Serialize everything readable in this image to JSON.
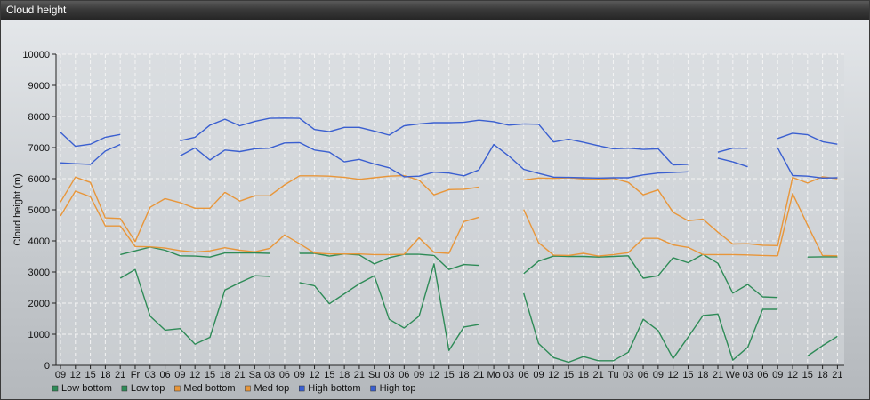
{
  "window": {
    "title": "Cloud height"
  },
  "chart_data": {
    "type": "line",
    "ylabel": "Cloud height (m)",
    "xlabel": "",
    "ylim": [
      0,
      10000
    ],
    "yticks": [
      0,
      1000,
      2000,
      3000,
      4000,
      5000,
      6000,
      7000,
      8000,
      9000,
      10000
    ],
    "grid": true,
    "legend_position": "bottom-left",
    "categories": [
      "09",
      "12",
      "15",
      "18",
      "21",
      "Fr",
      "03",
      "06",
      "09",
      "12",
      "15",
      "18",
      "21",
      "Sa",
      "03",
      "06",
      "09",
      "12",
      "15",
      "18",
      "21",
      "Su",
      "03",
      "06",
      "09",
      "12",
      "15",
      "18",
      "21",
      "Mo",
      "03",
      "06",
      "09",
      "12",
      "15",
      "18",
      "21",
      "Tu",
      "03",
      "06",
      "09",
      "12",
      "15",
      "18",
      "21",
      "We",
      "03",
      "06",
      "09",
      "12",
      "15",
      "18",
      "21"
    ],
    "series": [
      {
        "name": "Low bottom",
        "color": "#2e8b57",
        "values": [
          null,
          null,
          null,
          null,
          2800,
          3080,
          1580,
          1130,
          1180,
          680,
          900,
          2420,
          2660,
          2880,
          2860,
          null,
          2660,
          2560,
          1980,
          2300,
          2620,
          2880,
          1480,
          1200,
          1580,
          3260,
          480,
          1230,
          1310,
          null,
          null,
          2320,
          700,
          250,
          100,
          280,
          150,
          150,
          420,
          1480,
          1120,
          220,
          900,
          1600,
          1650,
          170,
          580,
          1800,
          1800,
          null,
          300,
          630,
          930
        ]
      },
      {
        "name": "Low top",
        "color": "#2e8b57",
        "values": [
          null,
          null,
          null,
          null,
          3560,
          3680,
          3800,
          3700,
          3520,
          3510,
          3480,
          3610,
          3610,
          3610,
          3600,
          null,
          3600,
          3600,
          3510,
          3580,
          3550,
          3260,
          3460,
          3570,
          3570,
          3530,
          3080,
          3240,
          3210,
          null,
          null,
          2950,
          3350,
          3510,
          3500,
          3500,
          3480,
          3500,
          3520,
          2800,
          2880,
          3460,
          3300,
          3570,
          3280,
          2320,
          2600,
          2200,
          2180,
          null,
          3480,
          3490,
          3490
        ]
      },
      {
        "name": "Med bottom",
        "color": "#e8963a",
        "values": [
          4800,
          5600,
          5420,
          4480,
          4480,
          3820,
          3810,
          3770,
          3690,
          3640,
          3680,
          3780,
          3700,
          3650,
          3760,
          4190,
          3910,
          3610,
          3580,
          3580,
          3580,
          3560,
          3560,
          3570,
          4100,
          3630,
          3600,
          4620,
          4760,
          null,
          null,
          5010,
          3940,
          3540,
          3530,
          3600,
          3510,
          3560,
          3620,
          4080,
          4080,
          3870,
          3790,
          3560,
          3560,
          3560,
          3550,
          3530,
          3520,
          5520,
          4510,
          3530,
          3520
        ]
      },
      {
        "name": "Med top",
        "color": "#e8963a",
        "values": [
          5250,
          6050,
          5880,
          4740,
          4720,
          3980,
          5080,
          5360,
          5230,
          5050,
          5050,
          5560,
          5280,
          5450,
          5450,
          5800,
          6090,
          6090,
          6080,
          6040,
          5980,
          6030,
          6080,
          6100,
          5950,
          5480,
          5650,
          5660,
          5730,
          null,
          null,
          5960,
          6020,
          6010,
          6030,
          5990,
          5980,
          6010,
          5880,
          5480,
          5640,
          4920,
          4650,
          4700,
          4280,
          3900,
          3910,
          3860,
          3850,
          6040,
          5860,
          6060,
          6000
        ]
      },
      {
        "name": "High bottom",
        "color": "#3a5fd0",
        "values": [
          6510,
          6480,
          6460,
          6890,
          7100,
          null,
          null,
          null,
          6730,
          6990,
          6600,
          6920,
          6870,
          6960,
          6980,
          7150,
          7160,
          6920,
          6850,
          6540,
          6620,
          6470,
          6350,
          6060,
          6080,
          6210,
          6180,
          6090,
          6280,
          7100,
          6730,
          6300,
          6170,
          6050,
          6040,
          6030,
          6020,
          6030,
          6030,
          6120,
          6180,
          6200,
          6220,
          null,
          6660,
          6540,
          6380,
          null,
          6990,
          6100,
          6080,
          6020,
          6030
        ]
      },
      {
        "name": "High top",
        "color": "#3a5fd0",
        "values": [
          7490,
          7040,
          7110,
          7330,
          7420,
          null,
          null,
          null,
          7220,
          7330,
          7720,
          7910,
          7700,
          7840,
          7940,
          7950,
          7940,
          7580,
          7510,
          7650,
          7650,
          7530,
          7400,
          7700,
          7760,
          7800,
          7800,
          7810,
          7880,
          7830,
          7720,
          7760,
          7750,
          7180,
          7270,
          7170,
          7060,
          6960,
          6980,
          6940,
          6960,
          6440,
          6460,
          null,
          6850,
          6980,
          6980,
          null,
          7290,
          7460,
          7410,
          7190,
          7110
        ]
      }
    ]
  },
  "legend": [
    {
      "label": "Low bottom",
      "color": "#2e8b57"
    },
    {
      "label": "Low top",
      "color": "#2e8b57"
    },
    {
      "label": "Med bottom",
      "color": "#e8963a"
    },
    {
      "label": "Med top",
      "color": "#e8963a"
    },
    {
      "label": "High bottom",
      "color": "#3a5fd0"
    },
    {
      "label": "High top",
      "color": "#3a5fd0"
    }
  ]
}
